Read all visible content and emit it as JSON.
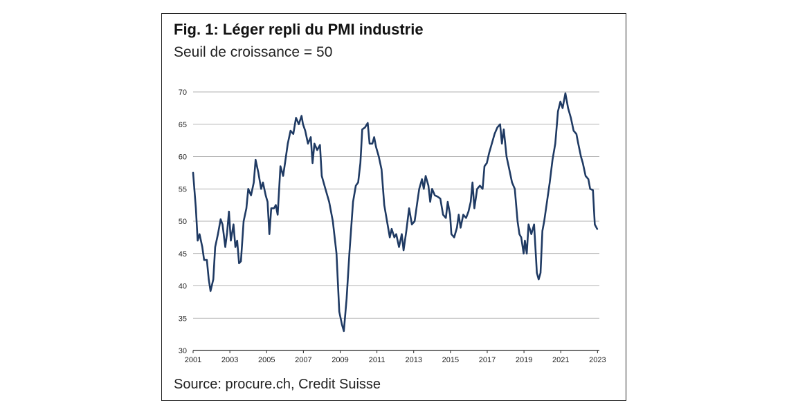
{
  "title": "Fig. 1: Léger repli du PMI industrie",
  "subtitle": "Seuil de croissance = 50",
  "source": "Source: procure.ch, Credit Suisse",
  "colors": {
    "line": "#1f3a63",
    "grid": "#999999",
    "axis": "#222222"
  },
  "chart_data": {
    "type": "line",
    "title": "Fig. 1: Léger repli du PMI industrie",
    "subtitle": "Seuil de croissance = 50",
    "xlabel": "",
    "ylabel": "",
    "xlim": [
      2001,
      2023.1
    ],
    "ylim": [
      30,
      70
    ],
    "yticks": [
      30,
      35,
      40,
      45,
      50,
      55,
      60,
      65,
      70
    ],
    "xticks": [
      2001,
      2003,
      2005,
      2007,
      2009,
      2011,
      2013,
      2015,
      2017,
      2019,
      2021,
      2023
    ],
    "grid": true,
    "legend": "none",
    "series": [
      {
        "name": "PMI industrie",
        "points": [
          [
            2001.0,
            57.5
          ],
          [
            2001.15,
            52
          ],
          [
            2001.25,
            47
          ],
          [
            2001.35,
            48
          ],
          [
            2001.5,
            46
          ],
          [
            2001.6,
            44
          ],
          [
            2001.75,
            44
          ],
          [
            2001.85,
            41
          ],
          [
            2001.95,
            39.2
          ],
          [
            2002.1,
            41
          ],
          [
            2002.2,
            46
          ],
          [
            2002.35,
            48
          ],
          [
            2002.5,
            50.3
          ],
          [
            2002.6,
            49.5
          ],
          [
            2002.75,
            46
          ],
          [
            2002.85,
            48.2
          ],
          [
            2002.95,
            51.5
          ],
          [
            2003.05,
            47
          ],
          [
            2003.2,
            49.5
          ],
          [
            2003.3,
            46
          ],
          [
            2003.4,
            47
          ],
          [
            2003.5,
            43.5
          ],
          [
            2003.6,
            43.8
          ],
          [
            2003.75,
            50
          ],
          [
            2003.9,
            52
          ],
          [
            2004.0,
            55
          ],
          [
            2004.15,
            54
          ],
          [
            2004.3,
            56
          ],
          [
            2004.4,
            59.5
          ],
          [
            2004.55,
            57.5
          ],
          [
            2004.7,
            55
          ],
          [
            2004.8,
            56
          ],
          [
            2004.95,
            54
          ],
          [
            2005.05,
            53
          ],
          [
            2005.15,
            48
          ],
          [
            2005.25,
            52
          ],
          [
            2005.4,
            52
          ],
          [
            2005.5,
            52.5
          ],
          [
            2005.6,
            51
          ],
          [
            2005.75,
            58.5
          ],
          [
            2005.9,
            57
          ],
          [
            2006.0,
            59
          ],
          [
            2006.15,
            62
          ],
          [
            2006.3,
            64
          ],
          [
            2006.45,
            63.5
          ],
          [
            2006.6,
            66
          ],
          [
            2006.75,
            65
          ],
          [
            2006.9,
            66.3
          ],
          [
            2006.98,
            65
          ],
          [
            2007.1,
            64
          ],
          [
            2007.25,
            62
          ],
          [
            2007.4,
            63
          ],
          [
            2007.5,
            59
          ],
          [
            2007.6,
            62
          ],
          [
            2007.75,
            61
          ],
          [
            2007.9,
            61.8
          ],
          [
            2008.0,
            57
          ],
          [
            2008.2,
            55
          ],
          [
            2008.4,
            53
          ],
          [
            2008.6,
            50
          ],
          [
            2008.8,
            45
          ],
          [
            2008.95,
            36
          ],
          [
            2009.1,
            34
          ],
          [
            2009.2,
            33
          ],
          [
            2009.35,
            38
          ],
          [
            2009.5,
            45
          ],
          [
            2009.7,
            53
          ],
          [
            2009.85,
            55.5
          ],
          [
            2009.98,
            56
          ],
          [
            2010.1,
            59
          ],
          [
            2010.2,
            64.2
          ],
          [
            2010.35,
            64.5
          ],
          [
            2010.5,
            65.2
          ],
          [
            2010.6,
            62
          ],
          [
            2010.75,
            62
          ],
          [
            2010.85,
            63
          ],
          [
            2010.95,
            61.5
          ],
          [
            2011.1,
            60
          ],
          [
            2011.25,
            58
          ],
          [
            2011.4,
            52.5
          ],
          [
            2011.55,
            50
          ],
          [
            2011.7,
            47.5
          ],
          [
            2011.8,
            48.8
          ],
          [
            2011.95,
            47.5
          ],
          [
            2012.05,
            48
          ],
          [
            2012.2,
            46
          ],
          [
            2012.35,
            48
          ],
          [
            2012.45,
            45.5
          ],
          [
            2012.6,
            48.5
          ],
          [
            2012.75,
            52
          ],
          [
            2012.9,
            49.5
          ],
          [
            2013.05,
            50
          ],
          [
            2013.2,
            53
          ],
          [
            2013.3,
            55
          ],
          [
            2013.45,
            56.5
          ],
          [
            2013.55,
            55
          ],
          [
            2013.65,
            57
          ],
          [
            2013.8,
            55.5
          ],
          [
            2013.9,
            53
          ],
          [
            2014.0,
            55
          ],
          [
            2014.15,
            54
          ],
          [
            2014.3,
            53.8
          ],
          [
            2014.45,
            53.5
          ],
          [
            2014.6,
            51
          ],
          [
            2014.75,
            50.5
          ],
          [
            2014.85,
            53
          ],
          [
            2014.98,
            51
          ],
          [
            2015.05,
            48
          ],
          [
            2015.2,
            47.5
          ],
          [
            2015.35,
            49
          ],
          [
            2015.45,
            51
          ],
          [
            2015.55,
            49
          ],
          [
            2015.7,
            51
          ],
          [
            2015.85,
            50.5
          ],
          [
            2015.98,
            51.5
          ],
          [
            2016.1,
            53
          ],
          [
            2016.2,
            56
          ],
          [
            2016.3,
            52
          ],
          [
            2016.45,
            55
          ],
          [
            2016.6,
            55.5
          ],
          [
            2016.75,
            55
          ],
          [
            2016.85,
            58.5
          ],
          [
            2016.98,
            59
          ],
          [
            2017.1,
            60.5
          ],
          [
            2017.25,
            62
          ],
          [
            2017.4,
            63.5
          ],
          [
            2017.55,
            64.5
          ],
          [
            2017.7,
            65
          ],
          [
            2017.8,
            62
          ],
          [
            2017.9,
            64.2
          ],
          [
            2018.05,
            60
          ],
          [
            2018.2,
            58
          ],
          [
            2018.35,
            56
          ],
          [
            2018.5,
            55
          ],
          [
            2018.65,
            50
          ],
          [
            2018.75,
            48
          ],
          [
            2018.85,
            47.5
          ],
          [
            2018.98,
            45
          ],
          [
            2019.05,
            47
          ],
          [
            2019.15,
            45
          ],
          [
            2019.25,
            49.5
          ],
          [
            2019.4,
            48
          ],
          [
            2019.55,
            49.5
          ],
          [
            2019.7,
            42
          ],
          [
            2019.8,
            41
          ],
          [
            2019.9,
            42
          ],
          [
            2020.0,
            48.5
          ],
          [
            2020.1,
            50
          ],
          [
            2020.25,
            53
          ],
          [
            2020.4,
            56
          ],
          [
            2020.55,
            59.5
          ],
          [
            2020.7,
            62
          ],
          [
            2020.85,
            67
          ],
          [
            2020.98,
            68.5
          ],
          [
            2021.1,
            67.5
          ],
          [
            2021.25,
            69.8
          ],
          [
            2021.4,
            67.5
          ],
          [
            2021.55,
            66
          ],
          [
            2021.7,
            64
          ],
          [
            2021.85,
            63.5
          ],
          [
            2021.95,
            62
          ],
          [
            2022.1,
            60
          ],
          [
            2022.2,
            59
          ],
          [
            2022.35,
            57
          ],
          [
            2022.5,
            56.5
          ],
          [
            2022.6,
            55
          ],
          [
            2022.75,
            54.8
          ],
          [
            2022.85,
            49.5
          ],
          [
            2022.98,
            48.8
          ]
        ]
      }
    ]
  }
}
